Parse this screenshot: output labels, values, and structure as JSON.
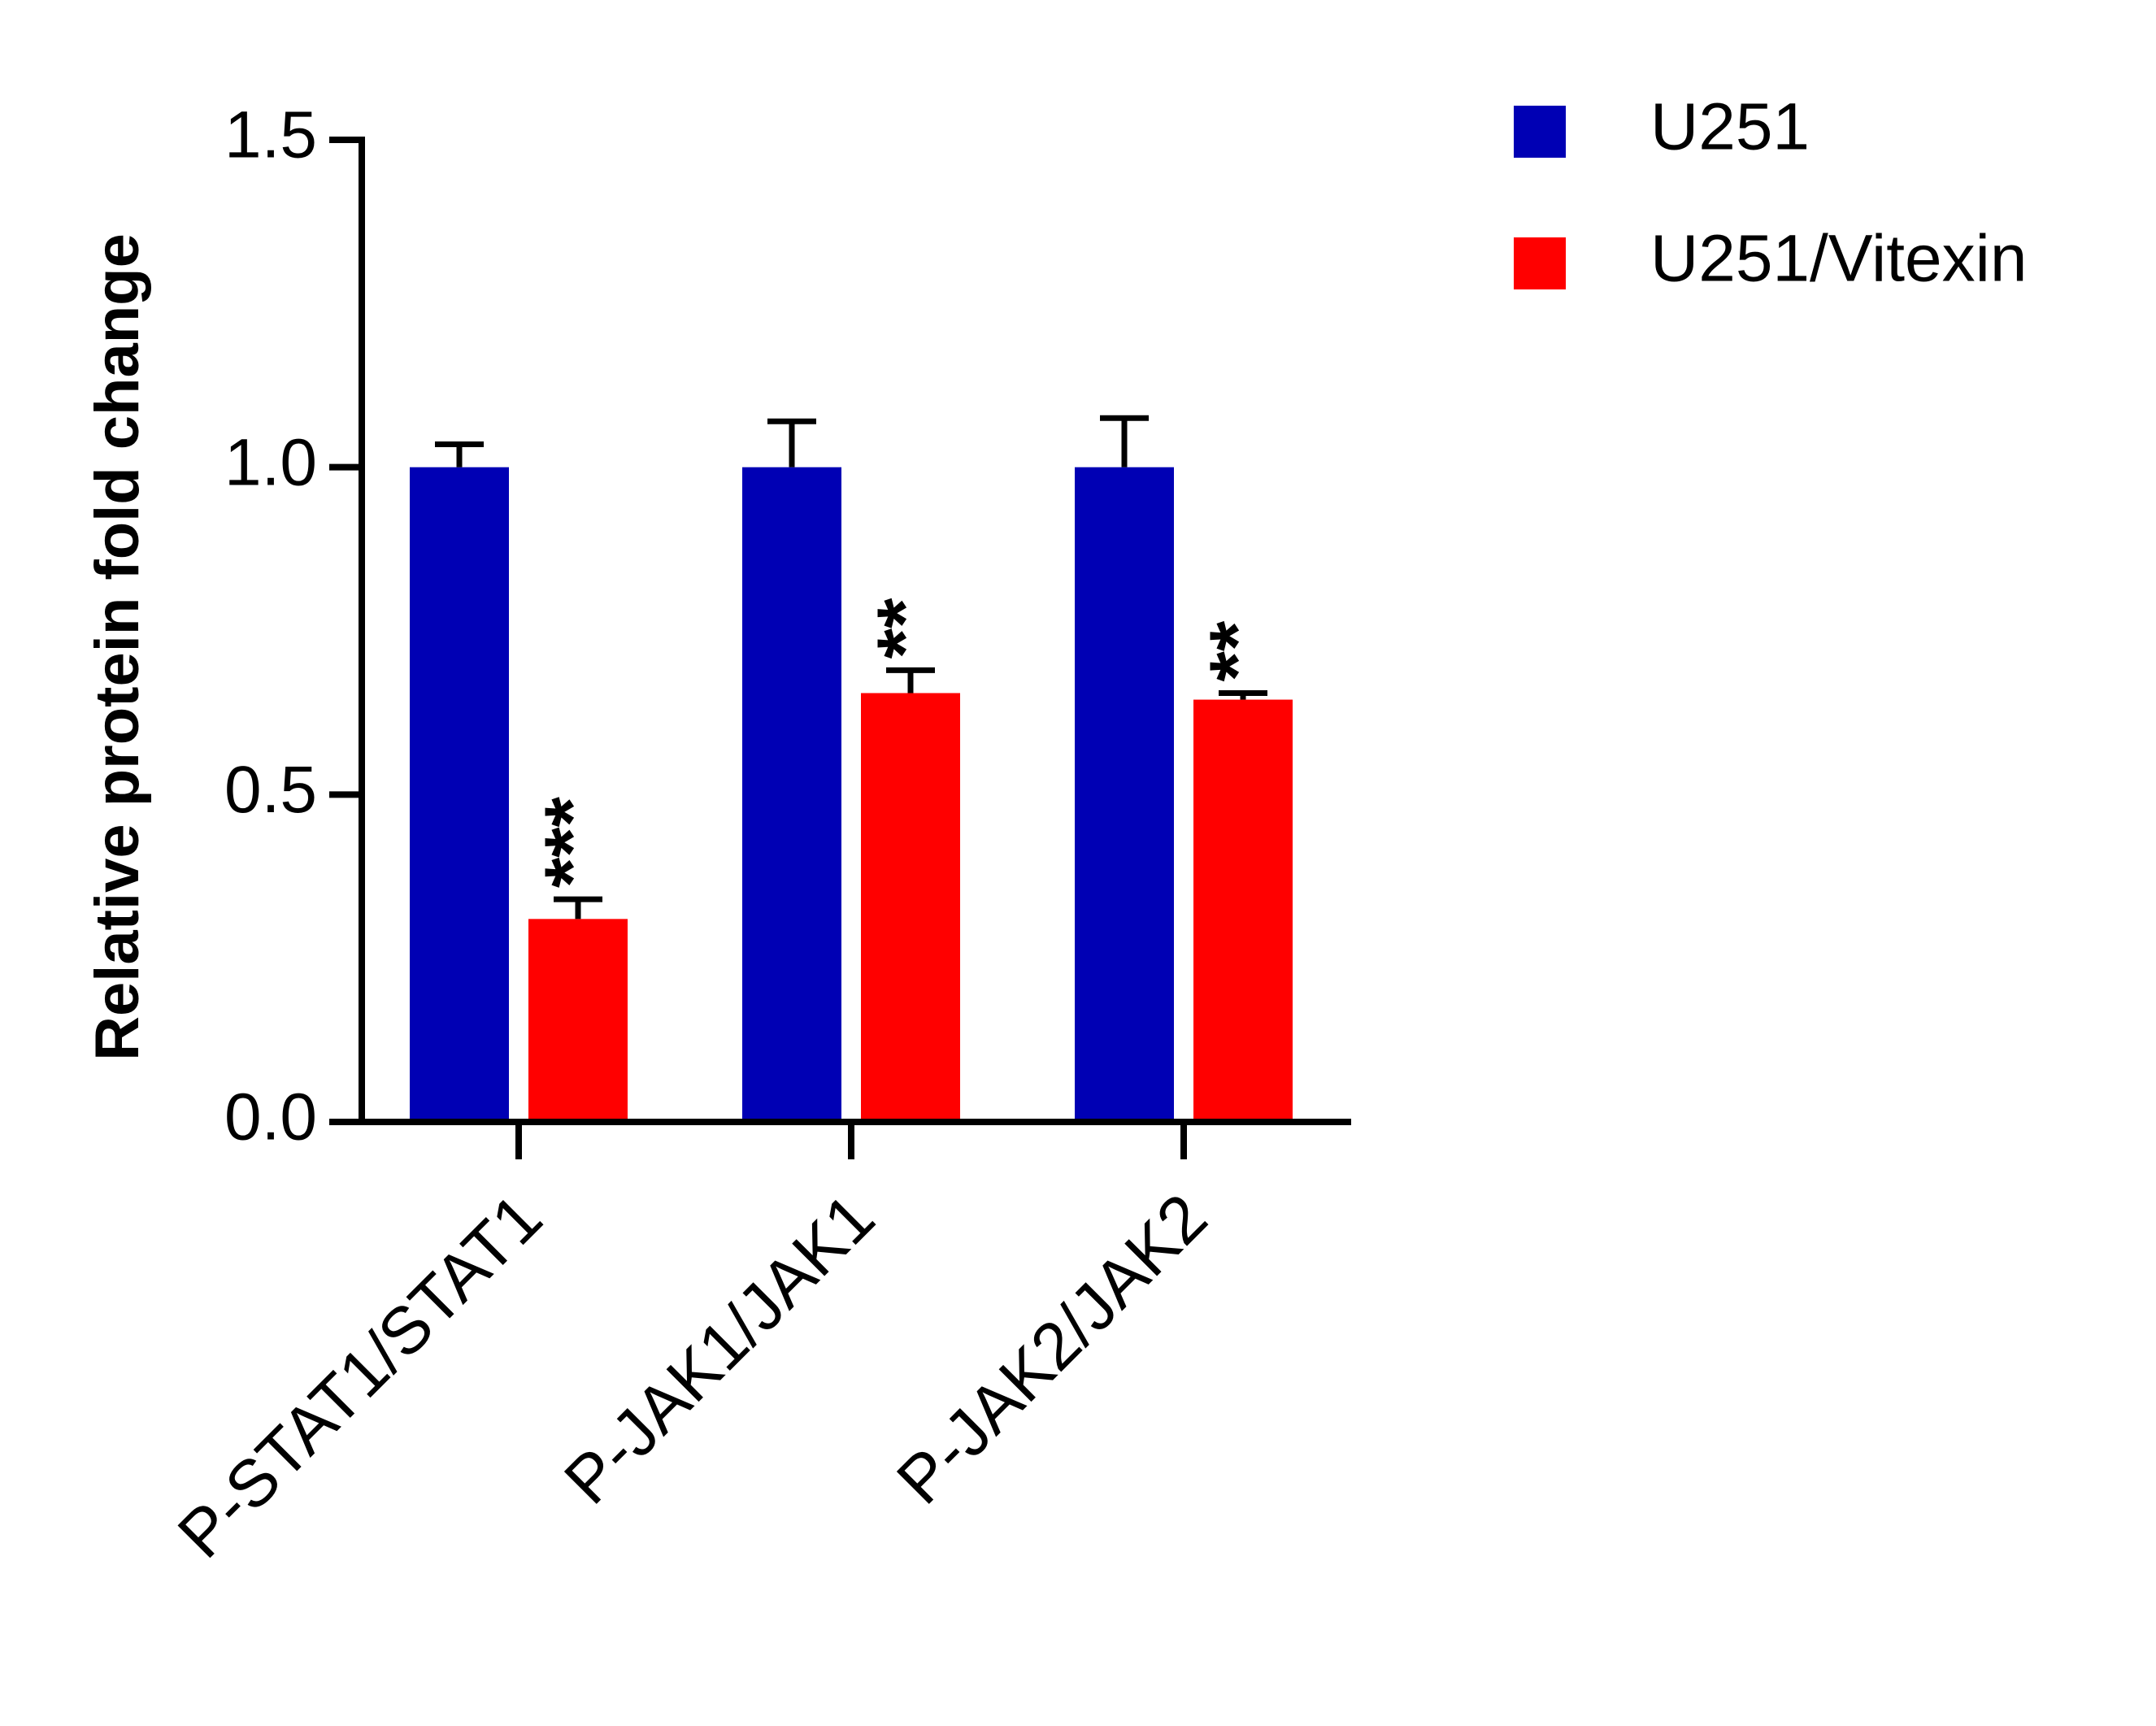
{
  "chart_data": {
    "type": "bar",
    "title": "",
    "xlabel": "",
    "ylabel": "Relative protein fold change",
    "ylim": [
      0,
      1.5
    ],
    "yticks": [
      0.0,
      0.5,
      1.0,
      1.5
    ],
    "ytick_labels": [
      "0.0",
      "0.5",
      "1.0",
      "1.5"
    ],
    "categories": [
      "P-STAT1/STAT1",
      "P-JAK1/JAK1",
      "P-JAK2/JAK2"
    ],
    "series": [
      {
        "name": "U251",
        "color": "#0000b4",
        "values": [
          1.0,
          1.0,
          1.0
        ],
        "errors": [
          0.035,
          0.07,
          0.075
        ]
      },
      {
        "name": "U251/Vitexin",
        "color": "#ff0000",
        "values": [
          0.31,
          0.655,
          0.645
        ],
        "errors": [
          0.03,
          0.035,
          0.01
        ]
      }
    ],
    "annotations": [
      {
        "category_index": 0,
        "series_index": 1,
        "text": "***"
      },
      {
        "category_index": 1,
        "series_index": 1,
        "text": "**"
      },
      {
        "category_index": 2,
        "series_index": 1,
        "text": "**"
      }
    ],
    "legend_position": "top-right",
    "grid": false
  }
}
